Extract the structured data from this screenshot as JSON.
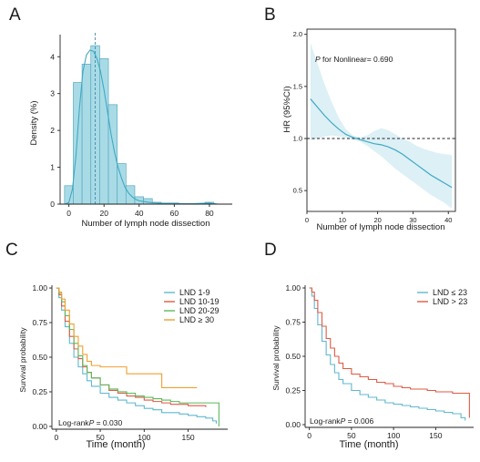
{
  "chart_data": [
    {
      "panel": "A",
      "type": "bar",
      "xlabel": "Number of lymph node dissection",
      "ylabel": "Density (%)",
      "xlim": [
        -5,
        93
      ],
      "ylim": [
        0,
        4.6
      ],
      "xticks": [
        0,
        20,
        40,
        60,
        80
      ],
      "yticks": [
        0,
        1,
        2,
        3,
        4
      ],
      "bin_width": 5,
      "bin_starts": [
        -2.5,
        2.5,
        7.5,
        12.5,
        17.5,
        22.5,
        27.5,
        32.5,
        37.5,
        42.5,
        47.5,
        52.5,
        57.5,
        62.5,
        67.5,
        72.5,
        77.5,
        82.5
      ],
      "values": [
        0.5,
        3.3,
        3.8,
        4.3,
        3.95,
        2.7,
        1.1,
        0.5,
        0.2,
        0.15,
        0.05,
        0.03,
        0.03,
        0.0,
        0.0,
        0.0,
        0.05,
        0.0
      ],
      "density_curve": {
        "x": [
          -2,
          0,
          2,
          4,
          6,
          8,
          10,
          12,
          14,
          16,
          18,
          20,
          22,
          24,
          26,
          28,
          30,
          32,
          34,
          36,
          38,
          40,
          45,
          50,
          55,
          60,
          65,
          70,
          75,
          80,
          85
        ],
        "y": [
          0.0,
          0.05,
          0.4,
          1.3,
          2.6,
          3.6,
          4.05,
          4.18,
          4.15,
          3.95,
          3.6,
          3.1,
          2.5,
          1.9,
          1.4,
          1.0,
          0.7,
          0.45,
          0.3,
          0.2,
          0.13,
          0.09,
          0.05,
          0.03,
          0.02,
          0.02,
          0.01,
          0.01,
          0.02,
          0.03,
          0.0
        ]
      },
      "reference_line_x": 15
    },
    {
      "panel": "B",
      "type": "line",
      "xlabel": "Number of lymph node dissection",
      "ylabel": "HR (95%CI)",
      "xlim": [
        0,
        42
      ],
      "ylim": [
        0.3,
        2.05
      ],
      "xticks": [
        0,
        10,
        20,
        30,
        40
      ],
      "yticks": [
        0.5,
        1.0,
        1.5,
        2.0
      ],
      "ytick_labels": [
        "0.5",
        "1.0",
        "1.5",
        "2.0"
      ],
      "reference_line_y": 1.0,
      "annotation_prefix": "P",
      "annotation_rest": " for Nonlinear= 0.690",
      "series": [
        {
          "x": [
            1,
            3,
            5,
            7,
            9,
            11,
            13,
            15,
            17,
            19,
            21,
            23,
            25,
            27,
            29,
            31,
            33,
            35,
            37,
            39,
            41
          ],
          "hr": [
            1.38,
            1.3,
            1.22,
            1.15,
            1.09,
            1.04,
            1.01,
            0.99,
            0.97,
            0.95,
            0.94,
            0.92,
            0.89,
            0.85,
            0.8,
            0.75,
            0.7,
            0.65,
            0.61,
            0.57,
            0.53
          ],
          "lower": [
            0.98,
            1.0,
            1.02,
            1.03,
            1.02,
            1.01,
            0.99,
            0.97,
            0.93,
            0.88,
            0.83,
            0.77,
            0.71,
            0.66,
            0.61,
            0.56,
            0.51,
            0.46,
            0.42,
            0.38,
            0.33
          ],
          "upper": [
            1.92,
            1.72,
            1.52,
            1.35,
            1.2,
            1.09,
            1.03,
            1.01,
            1.03,
            1.07,
            1.1,
            1.08,
            1.04,
            1.0,
            0.97,
            0.93,
            0.9,
            0.88,
            0.86,
            0.85,
            0.84
          ]
        }
      ]
    },
    {
      "panel": "C",
      "type": "line",
      "xlabel": "Time (month)",
      "ylabel": "Survival probability",
      "xlim": [
        -5,
        195
      ],
      "ylim": [
        -0.02,
        1.02
      ],
      "xticks": [
        0,
        50,
        100,
        150
      ],
      "yticks": [
        0.0,
        0.25,
        0.5,
        0.75,
        1.0
      ],
      "ytick_labels": [
        "0.00",
        "0.25",
        "0.50",
        "0.75",
        "1.00"
      ],
      "annotation_prefix": "Log-rank",
      "annotation_p": "P",
      "annotation_value": " = 0.030",
      "legend_position": "top-right",
      "series": [
        {
          "name": "LND 1-9",
          "color": "#5fb8cf",
          "x": [
            0,
            3,
            6,
            10,
            15,
            20,
            25,
            30,
            35,
            40,
            50,
            60,
            70,
            80,
            90,
            100,
            110,
            120,
            130,
            140,
            150,
            160,
            170,
            178,
            182
          ],
          "y": [
            1.0,
            0.93,
            0.84,
            0.72,
            0.6,
            0.5,
            0.43,
            0.38,
            0.33,
            0.29,
            0.24,
            0.21,
            0.19,
            0.17,
            0.15,
            0.13,
            0.12,
            0.1,
            0.1,
            0.09,
            0.08,
            0.07,
            0.06,
            0.04,
            0.02
          ]
        },
        {
          "name": "LND 10-19",
          "color": "#e05a43",
          "x": [
            0,
            3,
            6,
            10,
            15,
            20,
            25,
            30,
            35,
            40,
            50,
            60,
            70,
            80,
            90,
            100,
            110,
            120,
            130,
            140,
            150,
            160,
            170
          ],
          "y": [
            1.0,
            0.95,
            0.87,
            0.76,
            0.65,
            0.56,
            0.49,
            0.43,
            0.39,
            0.35,
            0.3,
            0.26,
            0.24,
            0.22,
            0.21,
            0.19,
            0.18,
            0.17,
            0.16,
            0.16,
            0.15,
            0.15,
            0.14
          ]
        },
        {
          "name": "LND 20-29",
          "color": "#5cb85c",
          "x": [
            0,
            3,
            6,
            10,
            15,
            20,
            25,
            30,
            35,
            40,
            50,
            60,
            70,
            80,
            90,
            100,
            110,
            120,
            130,
            140,
            150,
            160,
            170,
            180,
            185
          ],
          "y": [
            1.0,
            0.96,
            0.9,
            0.8,
            0.7,
            0.6,
            0.51,
            0.44,
            0.39,
            0.35,
            0.3,
            0.27,
            0.25,
            0.24,
            0.22,
            0.21,
            0.2,
            0.19,
            0.18,
            0.17,
            0.17,
            0.17,
            0.17,
            0.17,
            0.0
          ]
        },
        {
          "name": "LND ≥ 30",
          "color": "#f0a030",
          "x": [
            0,
            3,
            6,
            10,
            15,
            20,
            25,
            30,
            35,
            40,
            50,
            60,
            70,
            80,
            100,
            110,
            120,
            130,
            150,
            160
          ],
          "y": [
            1.0,
            0.97,
            0.92,
            0.84,
            0.74,
            0.65,
            0.58,
            0.52,
            0.47,
            0.44,
            0.43,
            0.43,
            0.43,
            0.38,
            0.38,
            0.38,
            0.28,
            0.28,
            0.28,
            0.28
          ]
        }
      ]
    },
    {
      "panel": "D",
      "type": "line",
      "xlabel": "Time (month)",
      "ylabel": "Survival probability",
      "xlim": [
        -5,
        195
      ],
      "ylim": [
        -0.02,
        1.02
      ],
      "xticks": [
        0,
        50,
        100,
        150
      ],
      "yticks": [
        0.0,
        0.25,
        0.5,
        0.75,
        1.0
      ],
      "ytick_labels": [
        "0.00",
        "0.25",
        "0.50",
        "0.75",
        "1.00"
      ],
      "annotation_prefix": "Log-rank",
      "annotation_p": "P",
      "annotation_value": " = 0.006",
      "legend_position": "top-right",
      "series": [
        {
          "name": "LND ≤ 23",
          "color": "#5fb8cf",
          "x": [
            0,
            3,
            6,
            10,
            15,
            20,
            25,
            30,
            35,
            40,
            50,
            60,
            70,
            80,
            90,
            100,
            110,
            120,
            130,
            140,
            150,
            160,
            170,
            180,
            185
          ],
          "y": [
            1.0,
            0.94,
            0.85,
            0.73,
            0.61,
            0.51,
            0.44,
            0.38,
            0.33,
            0.3,
            0.25,
            0.22,
            0.2,
            0.18,
            0.16,
            0.15,
            0.14,
            0.13,
            0.12,
            0.11,
            0.1,
            0.09,
            0.08,
            0.05,
            0.03
          ]
        },
        {
          "name": "LND > 23",
          "color": "#e05a43",
          "x": [
            0,
            3,
            6,
            10,
            15,
            20,
            25,
            30,
            35,
            40,
            50,
            60,
            70,
            80,
            90,
            100,
            110,
            120,
            130,
            140,
            150,
            160,
            170,
            180,
            188,
            190
          ],
          "y": [
            1.0,
            0.97,
            0.91,
            0.82,
            0.72,
            0.63,
            0.56,
            0.5,
            0.45,
            0.41,
            0.37,
            0.35,
            0.33,
            0.31,
            0.3,
            0.28,
            0.27,
            0.26,
            0.26,
            0.25,
            0.24,
            0.24,
            0.23,
            0.23,
            0.23,
            0.05
          ]
        }
      ]
    }
  ]
}
